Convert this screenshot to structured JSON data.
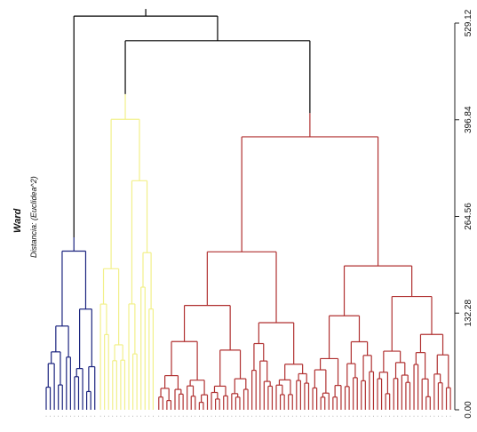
{
  "chart_data": {
    "type": "dendrogram",
    "title": "Ward",
    "ylabel": "Distancia: (Euclidea^2)",
    "ylim": [
      0,
      529.12
    ],
    "y_ticks": [
      "0.00",
      "132.28",
      "264.56",
      "396.84",
      "529.12"
    ],
    "y_tick_values": [
      0,
      132.28,
      264.56,
      396.84,
      529.12
    ],
    "root_height": 529,
    "clusters": [
      {
        "color": "#1a237e",
        "leaves": 13,
        "merge_height": 236,
        "sub_heights": [
          205,
          80,
          62,
          42
        ]
      },
      {
        "color": "#f2f08a",
        "leaves": 14,
        "merge_height": 432,
        "sub_heights": [
          212,
          170,
          105,
          70
        ]
      },
      {
        "color": "#b03030",
        "leaves": 73,
        "merge_height": 406,
        "sub_heights": [
          374,
          340,
          262,
          225,
          170,
          135
        ]
      }
    ],
    "top_merge_height": 505
  }
}
